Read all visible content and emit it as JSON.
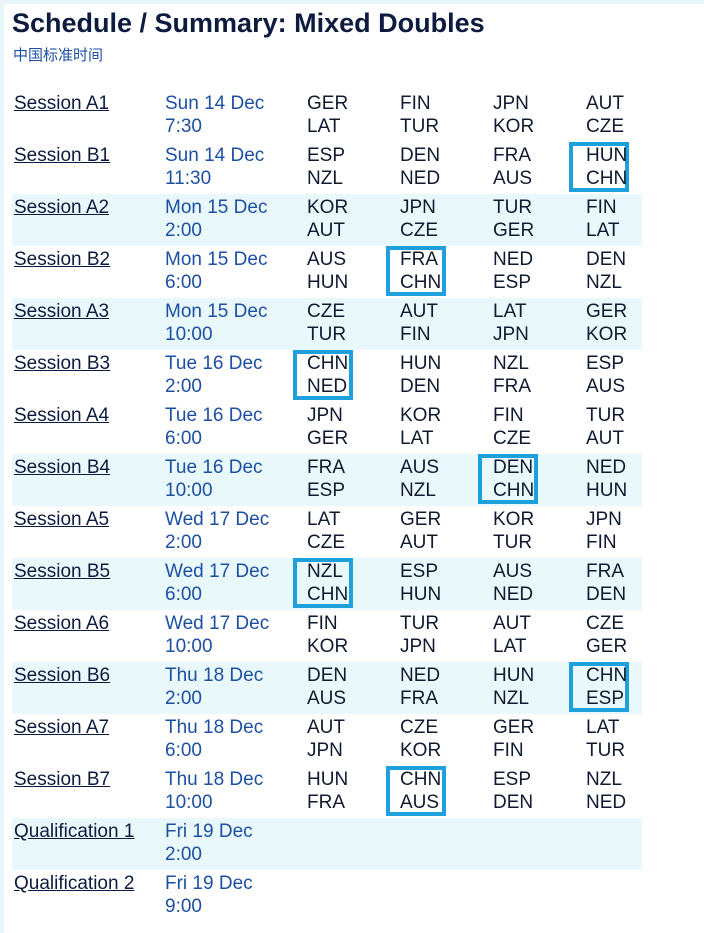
{
  "header": {
    "title": "Schedule / Summary: Mixed Doubles",
    "timezone": "中国标准时间"
  },
  "sessions": [
    {
      "name": "Session A1",
      "day": "Sun 14 Dec",
      "time": "7:30",
      "matches": [
        [
          "GER",
          "LAT"
        ],
        [
          "FIN",
          "TUR"
        ],
        [
          "JPN",
          "KOR"
        ],
        [
          "AUT",
          "CZE"
        ]
      ],
      "highlight": null
    },
    {
      "name": "Session B1",
      "day": "Sun 14 Dec",
      "time": "11:30",
      "matches": [
        [
          "ESP",
          "NZL"
        ],
        [
          "DEN",
          "NED"
        ],
        [
          "FRA",
          "AUS"
        ],
        [
          "HUN",
          "CHN"
        ]
      ],
      "highlight": 3
    },
    {
      "name": "Session A2",
      "day": "Mon 15 Dec",
      "time": "2:00",
      "matches": [
        [
          "KOR",
          "AUT"
        ],
        [
          "JPN",
          "CZE"
        ],
        [
          "TUR",
          "GER"
        ],
        [
          "FIN",
          "LAT"
        ]
      ],
      "highlight": null
    },
    {
      "name": "Session B2",
      "day": "Mon 15 Dec",
      "time": "6:00",
      "matches": [
        [
          "AUS",
          "HUN"
        ],
        [
          "FRA",
          "CHN"
        ],
        [
          "NED",
          "ESP"
        ],
        [
          "DEN",
          "NZL"
        ]
      ],
      "highlight": 1
    },
    {
      "name": "Session A3",
      "day": "Mon 15 Dec",
      "time": "10:00",
      "matches": [
        [
          "CZE",
          "TUR"
        ],
        [
          "AUT",
          "FIN"
        ],
        [
          "LAT",
          "JPN"
        ],
        [
          "GER",
          "KOR"
        ]
      ],
      "highlight": null
    },
    {
      "name": "Session B3",
      "day": "Tue 16 Dec",
      "time": "2:00",
      "matches": [
        [
          "CHN",
          "NED"
        ],
        [
          "HUN",
          "DEN"
        ],
        [
          "NZL",
          "FRA"
        ],
        [
          "ESP",
          "AUS"
        ]
      ],
      "highlight": 0
    },
    {
      "name": "Session A4",
      "day": "Tue 16 Dec",
      "time": "6:00",
      "matches": [
        [
          "JPN",
          "GER"
        ],
        [
          "KOR",
          "LAT"
        ],
        [
          "FIN",
          "CZE"
        ],
        [
          "TUR",
          "AUT"
        ]
      ],
      "highlight": null
    },
    {
      "name": "Session B4",
      "day": "Tue 16 Dec",
      "time": "10:00",
      "matches": [
        [
          "FRA",
          "ESP"
        ],
        [
          "AUS",
          "NZL"
        ],
        [
          "DEN",
          "CHN"
        ],
        [
          "NED",
          "HUN"
        ]
      ],
      "highlight": 2
    },
    {
      "name": "Session A5",
      "day": "Wed 17 Dec",
      "time": "2:00",
      "matches": [
        [
          "LAT",
          "CZE"
        ],
        [
          "GER",
          "AUT"
        ],
        [
          "KOR",
          "TUR"
        ],
        [
          "JPN",
          "FIN"
        ]
      ],
      "highlight": null
    },
    {
      "name": "Session B5",
      "day": "Wed 17 Dec",
      "time": "6:00",
      "matches": [
        [
          "NZL",
          "CHN"
        ],
        [
          "ESP",
          "HUN"
        ],
        [
          "AUS",
          "NED"
        ],
        [
          "FRA",
          "DEN"
        ]
      ],
      "highlight": 0
    },
    {
      "name": "Session A6",
      "day": "Wed 17 Dec",
      "time": "10:00",
      "matches": [
        [
          "FIN",
          "KOR"
        ],
        [
          "TUR",
          "JPN"
        ],
        [
          "AUT",
          "LAT"
        ],
        [
          "CZE",
          "GER"
        ]
      ],
      "highlight": null
    },
    {
      "name": "Session B6",
      "day": "Thu 18 Dec",
      "time": "2:00",
      "matches": [
        [
          "DEN",
          "AUS"
        ],
        [
          "NED",
          "FRA"
        ],
        [
          "HUN",
          "NZL"
        ],
        [
          "CHN",
          "ESP"
        ]
      ],
      "highlight": 3
    },
    {
      "name": "Session A7",
      "day": "Thu 18 Dec",
      "time": "6:00",
      "matches": [
        [
          "AUT",
          "JPN"
        ],
        [
          "CZE",
          "KOR"
        ],
        [
          "GER",
          "FIN"
        ],
        [
          "LAT",
          "TUR"
        ]
      ],
      "highlight": null
    },
    {
      "name": "Session B7",
      "day": "Thu 18 Dec",
      "time": "10:00",
      "matches": [
        [
          "HUN",
          "FRA"
        ],
        [
          "CHN",
          "AUS"
        ],
        [
          "ESP",
          "DEN"
        ],
        [
          "NZL",
          "NED"
        ]
      ],
      "highlight": 1
    },
    {
      "name": "Qualification 1",
      "day": "Fri 19 Dec",
      "time": "2:00",
      "matches": [],
      "highlight": null
    },
    {
      "name": "Qualification 2",
      "day": "Fri 19 Dec",
      "time": "9:00",
      "matches": [],
      "highlight": null
    }
  ],
  "colors": {
    "highlight_border": "#1ea0dc",
    "alt_row_background": "#e9f8fb",
    "date_text": "#1d4fa3",
    "title_text": "#0d1b3f"
  }
}
